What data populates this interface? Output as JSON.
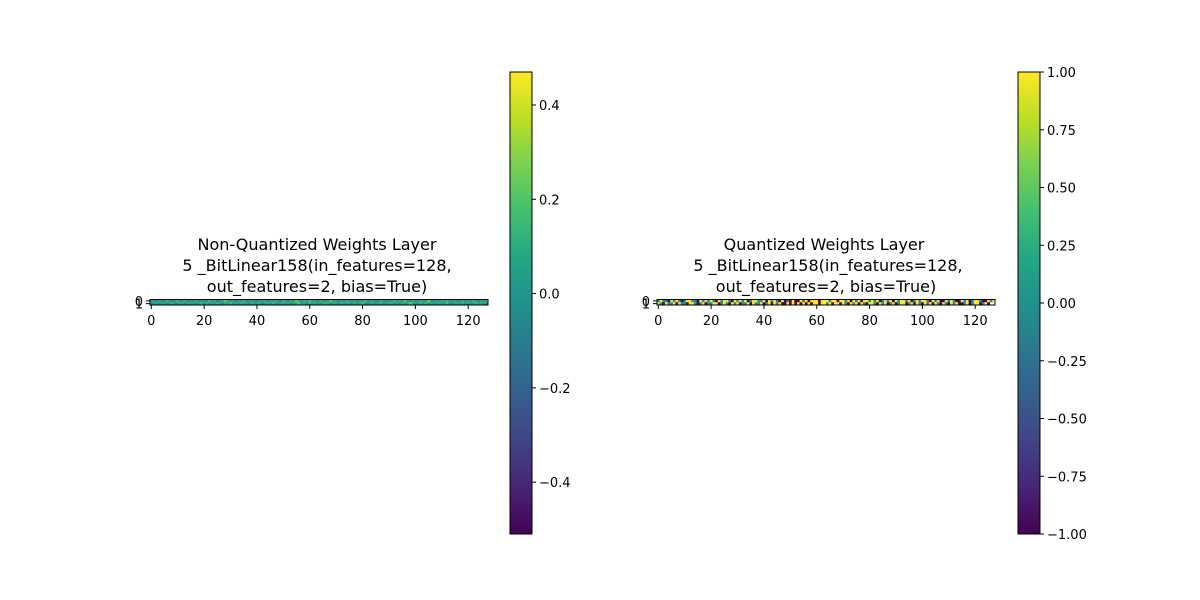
{
  "chart_data": [
    {
      "type": "heatmap",
      "title_lines": [
        "Non-Quantized Weights Layer",
        "5 _BitLinear158(in_features=128,",
        "out_features=2, bias=True)"
      ],
      "rows": 2,
      "cols": 128,
      "x_ticks": [
        0,
        20,
        40,
        60,
        80,
        100,
        120
      ],
      "y_ticks": [
        0,
        1
      ],
      "vmin": -0.51,
      "vmax": 0.47,
      "colorbar_ticks": [
        0.4,
        0.2,
        0.0,
        -0.2,
        -0.4
      ],
      "colorbar_tick_labels": [
        "0.4",
        "0.2",
        "0.0",
        "−0.2",
        "−0.4"
      ],
      "colormap": "viridis",
      "values": [
        [
          0.02,
          0.05,
          -0.03,
          0.08,
          0.01,
          -0.05,
          0.12,
          0.03,
          -0.02,
          0.06,
          0.15,
          -0.04,
          0.02,
          0.09,
          -0.07,
          0.04,
          0.01,
          0.11,
          -0.02,
          0.05,
          0.07,
          -0.01,
          0.13,
          0.02,
          0.08,
          -0.06,
          0.03,
          0.1,
          0.22,
          0.04,
          0.01,
          0.06,
          -0.03,
          0.09,
          0.02,
          0.14,
          -0.02,
          0.05,
          0.08,
          0.01,
          -0.04,
          0.07,
          0.03,
          0.12,
          -0.01,
          0.06,
          0.02,
          0.09,
          0.04,
          -0.03,
          0.11,
          0.05,
          0.01,
          0.08,
          0.02,
          0.25,
          0.06,
          -0.02,
          0.1,
          0.03,
          0.18,
          0.04,
          0.07,
          -0.01,
          0.12,
          0.05,
          0.02,
          0.09,
          0.2,
          0.03,
          0.06,
          -0.04,
          0.08,
          0.01,
          0.14,
          0.05,
          0.02,
          0.1,
          -0.02,
          0.07,
          0.04,
          0.16,
          0.01,
          0.06,
          0.09,
          -0.03,
          0.03,
          0.11,
          0.05,
          0.02,
          0.08,
          -0.01,
          0.13,
          0.04,
          0.07,
          0.02,
          0.19,
          0.06,
          -0.02,
          0.09,
          0.03,
          0.05,
          0.12,
          0.01,
          0.08,
          0.24,
          0.04,
          -0.03,
          0.07,
          0.02,
          0.1,
          0.05,
          0.15,
          0.01,
          0.06,
          0.09,
          -0.02,
          0.04,
          0.11,
          0.03,
          0.08,
          0.02,
          0.13,
          0.05,
          -0.01,
          0.07,
          0.04,
          0.1
        ],
        [
          -0.02,
          0.04,
          0.07,
          -0.05,
          0.03,
          0.09,
          -0.01,
          0.06,
          0.12,
          -0.03,
          0.02,
          0.08,
          0.05,
          -0.06,
          0.1,
          0.01,
          0.04,
          -0.02,
          0.07,
          0.14,
          0.03,
          0.09,
          -0.04,
          0.06,
          0.01,
          0.11,
          0.05,
          -0.02,
          0.08,
          0.03,
          0.17,
          0.02,
          0.06,
          -0.01,
          0.1,
          0.04,
          0.07,
          -0.03,
          0.12,
          0.02,
          0.05,
          0.09,
          -0.05,
          0.03,
          0.08,
          0.01,
          0.13,
          0.04,
          -0.02,
          0.06,
          0.1,
          0.02,
          0.07,
          -0.04,
          0.05,
          0.09,
          0.21,
          0.03,
          0.06,
          -0.01,
          0.11,
          0.04,
          0.08,
          0.02,
          -0.03,
          0.07,
          0.15,
          0.05,
          0.01,
          0.09,
          0.03,
          -0.02,
          0.12,
          0.06,
          0.04,
          0.08,
          -0.01,
          0.1,
          0.02,
          0.05,
          0.18,
          0.03,
          -0.04,
          0.07,
          0.09,
          0.01,
          0.06,
          0.11,
          -0.02,
          0.04,
          0.08,
          0.13,
          0.02,
          0.05,
          -0.03,
          0.1,
          0.07,
          0.03,
          0.23,
          0.06,
          0.01,
          -0.01,
          0.09,
          0.04,
          0.12,
          0.02,
          0.07,
          -0.02,
          0.05,
          0.1,
          0.03,
          0.08,
          0.16,
          0.01,
          -0.03,
          0.06,
          0.09,
          0.04,
          0.11,
          0.02,
          0.07,
          -0.01,
          0.05,
          0.13,
          0.03,
          0.08,
          0.01,
          -0.02
        ]
      ]
    },
    {
      "type": "heatmap",
      "title_lines": [
        "Quantized Weights Layer",
        "5 _BitLinear158(in_features=128,",
        "out_features=2, bias=True)"
      ],
      "rows": 2,
      "cols": 128,
      "x_ticks": [
        0,
        20,
        40,
        60,
        80,
        100,
        120
      ],
      "y_ticks": [
        0,
        1
      ],
      "vmin": -1.0,
      "vmax": 1.0,
      "colorbar_ticks": [
        1.0,
        0.75,
        0.5,
        0.25,
        0.0,
        -0.25,
        -0.5,
        -0.75,
        -1.0
      ],
      "colorbar_tick_labels": [
        "1.00",
        "0.75",
        "0.50",
        "0.25",
        "0.00",
        "−0.25",
        "−0.50",
        "−0.75",
        "−1.00"
      ],
      "colormap": "viridis",
      "values": [
        [
          0,
          1,
          0,
          0,
          -1,
          1,
          0,
          1,
          0,
          -1,
          0,
          1,
          1,
          0,
          0,
          -1,
          1,
          0,
          1,
          0,
          1,
          0,
          -1,
          1,
          0,
          1,
          1,
          0,
          -1,
          1,
          0,
          1,
          0,
          1,
          -1,
          0,
          1,
          1,
          0,
          0,
          1,
          -1,
          1,
          0,
          1,
          0,
          -1,
          1,
          -1,
          0,
          -1,
          1,
          -1,
          -1,
          1,
          0,
          1,
          -1,
          1,
          1,
          1,
          -1,
          1,
          1,
          1,
          0,
          1,
          1,
          -1,
          1,
          1,
          0,
          1,
          -1,
          1,
          0,
          1,
          -1,
          1,
          1,
          0,
          1,
          0,
          1,
          -1,
          0,
          1,
          0,
          1,
          -1,
          1,
          0,
          1,
          1,
          0,
          1,
          -1,
          0,
          1,
          0,
          1,
          1,
          0,
          -1,
          1,
          0,
          1,
          -1,
          -1,
          1,
          0,
          1,
          0,
          -1,
          -1,
          1,
          0,
          1,
          -1,
          0,
          1,
          1,
          0,
          -1,
          -1,
          1,
          0,
          1
        ],
        [
          1,
          0,
          -1,
          1,
          0,
          0,
          1,
          -1,
          1,
          0,
          0,
          -1,
          1,
          1,
          0,
          -1,
          0,
          1,
          -1,
          0,
          0,
          1,
          1,
          -1,
          0,
          1,
          0,
          -1,
          1,
          0,
          1,
          -1,
          0,
          0,
          1,
          -1,
          1,
          0,
          0,
          1,
          -1,
          0,
          1,
          -1,
          1,
          0,
          1,
          -1,
          -1,
          1,
          -1,
          1,
          -1,
          1,
          -1,
          1,
          -1,
          1,
          -1,
          1,
          1,
          -1,
          1,
          1,
          0,
          1,
          -1,
          1,
          1,
          -1,
          1,
          0,
          -1,
          1,
          0,
          1,
          -1,
          1,
          0,
          -1,
          1,
          1,
          0,
          -1,
          1,
          0,
          1,
          -1,
          0,
          1,
          -1,
          0,
          1,
          1,
          -1,
          0,
          1,
          -1,
          1,
          0,
          -1,
          1,
          0,
          1,
          -1,
          1,
          0,
          -1,
          1,
          0,
          -1,
          1,
          0,
          1,
          -1,
          -1,
          0,
          1,
          -1,
          0,
          1,
          1,
          -1,
          0,
          1,
          -1
        ]
      ]
    }
  ]
}
